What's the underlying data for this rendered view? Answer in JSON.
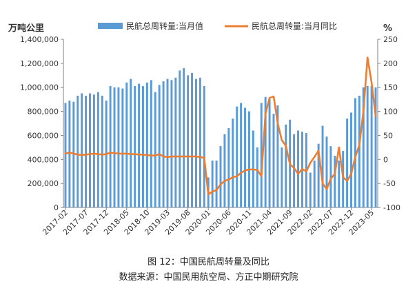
{
  "figure": {
    "caption": "图 12：中国民航周转量及同比",
    "source": "数据来源：中国民用航空局、方正中期研究院"
  },
  "chart_data": {
    "type": "bar-line",
    "left_unit": "万吨公里",
    "right_unit": "%",
    "legend": {
      "bar": "民航总周转量:当月值",
      "line": "民航总周转量:当月同比",
      "placement": "top"
    },
    "colors": {
      "bar": "#5b9bd5",
      "line": "#ed7d31",
      "axis": "#7f7f7f",
      "text": "#333333"
    },
    "y_left": {
      "min": 0,
      "max": 1400000,
      "step": 200000,
      "ticks": [
        "0",
        "200,000",
        "400,000",
        "600,000",
        "800,000",
        "1,000,000",
        "1,200,000",
        "1,400,000"
      ]
    },
    "y_right": {
      "min": -100,
      "max": 250,
      "step": 50,
      "ticks": [
        "-100",
        "-50",
        "0",
        "50",
        "100",
        "150",
        "200",
        "250"
      ]
    },
    "grid": false,
    "x_tick_labels": [
      {
        "index": 0,
        "label": "2017-02"
      },
      {
        "index": 5,
        "label": "2017-07"
      },
      {
        "index": 10,
        "label": "2017-12"
      },
      {
        "index": 15,
        "label": "2018-05"
      },
      {
        "index": 20,
        "label": "2018-10"
      },
      {
        "index": 25,
        "label": "2019-03"
      },
      {
        "index": 30,
        "label": "2019-08"
      },
      {
        "index": 35,
        "label": "2020-01"
      },
      {
        "index": 40,
        "label": "2020-06"
      },
      {
        "index": 45,
        "label": "2020-11"
      },
      {
        "index": 50,
        "label": "2021-04"
      },
      {
        "index": 55,
        "label": "2021-09"
      },
      {
        "index": 60,
        "label": "2022-02"
      },
      {
        "index": 65,
        "label": "2022-07"
      },
      {
        "index": 70,
        "label": "2022-12"
      },
      {
        "index": 75,
        "label": "2023-05"
      }
    ],
    "months": [
      "2017-02",
      "2017-03",
      "2017-04",
      "2017-05",
      "2017-06",
      "2017-07",
      "2017-08",
      "2017-09",
      "2017-10",
      "2017-11",
      "2017-12",
      "2018-01",
      "2018-02",
      "2018-03",
      "2018-04",
      "2018-05",
      "2018-06",
      "2018-07",
      "2018-08",
      "2018-09",
      "2018-10",
      "2018-11",
      "2018-12",
      "2019-01",
      "2019-02",
      "2019-03",
      "2019-04",
      "2019-05",
      "2019-06",
      "2019-07",
      "2019-08",
      "2019-09",
      "2019-10",
      "2019-11",
      "2019-12",
      "2020-01",
      "2020-02",
      "2020-03",
      "2020-04",
      "2020-05",
      "2020-06",
      "2020-07",
      "2020-08",
      "2020-09",
      "2020-10",
      "2020-11",
      "2020-12",
      "2021-01",
      "2021-02",
      "2021-03",
      "2021-04",
      "2021-05",
      "2021-06",
      "2021-07",
      "2021-08",
      "2021-09",
      "2021-10",
      "2021-11",
      "2021-12",
      "2022-01",
      "2022-02",
      "2022-03",
      "2022-04",
      "2022-05",
      "2022-06",
      "2022-07",
      "2022-08",
      "2022-09",
      "2022-10",
      "2022-11",
      "2022-12",
      "2023-01",
      "2023-02",
      "2023-03",
      "2023-04",
      "2023-05",
      "2023-06"
    ],
    "series": [
      {
        "name": "民航总周转量:当月值",
        "type": "bar",
        "axis": "left",
        "values": [
          870000,
          890000,
          880000,
          930000,
          950000,
          930000,
          950000,
          940000,
          960000,
          930000,
          890000,
          1010000,
          1000000,
          1000000,
          990000,
          1040000,
          1070000,
          1010000,
          1030000,
          1010000,
          1040000,
          1060000,
          960000,
          1020000,
          1050000,
          1070000,
          1060000,
          1080000,
          1140000,
          1160000,
          1100000,
          1120000,
          1070000,
          1080000,
          1010000,
          250000,
          390000,
          390000,
          510000,
          610000,
          660000,
          740000,
          840000,
          870000,
          830000,
          800000,
          640000,
          500000,
          870000,
          920000,
          900000,
          780000,
          850000,
          500000,
          690000,
          730000,
          610000,
          640000,
          630000,
          620000,
          290000,
          390000,
          530000,
          680000,
          590000,
          510000,
          430000,
          390000,
          470000,
          740000,
          790000,
          910000,
          930000,
          1000000,
          1010000,
          1010000,
          1000000
        ]
      },
      {
        "name": "民航总周转量:当月同比",
        "type": "line",
        "axis": "right",
        "values": [
          12,
          14,
          12,
          10,
          9,
          10,
          11,
          12,
          11,
          10,
          11,
          14,
          13,
          12,
          12,
          12,
          11,
          11,
          10,
          10,
          9,
          8,
          8,
          11,
          6,
          5,
          6,
          6,
          6,
          6,
          6,
          6,
          6,
          5,
          3,
          -73,
          -67,
          -64,
          -52,
          -45,
          -42,
          -37,
          -35,
          -28,
          -23,
          -21,
          -21,
          -22,
          -35,
          95,
          128,
          131,
          75,
          40,
          28,
          -10,
          -18,
          -30,
          -20,
          -25,
          -7,
          5,
          18,
          -50,
          -62,
          -40,
          -30,
          25,
          -37,
          -45,
          -30,
          5,
          30,
          100,
          212,
          160,
          90
        ]
      }
    ]
  }
}
